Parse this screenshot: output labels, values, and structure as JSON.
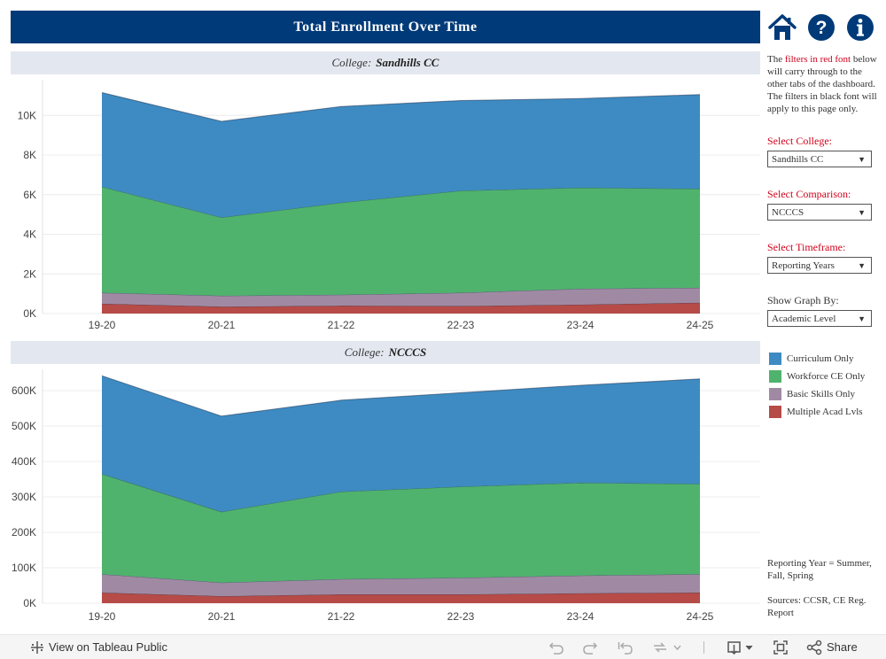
{
  "header": {
    "title": "Total Enrollment Over Time"
  },
  "icons": {
    "home": "home-icon",
    "help": "help-icon",
    "info": "info-icon"
  },
  "colors": {
    "title_bg": "#003a78",
    "curriculum": "#3d8bc2",
    "workforce": "#4fb36d",
    "basic": "#a08aa3",
    "multiple": "#b64b47",
    "filter_red": "#d0021b"
  },
  "sidebar": {
    "note_1": "The",
    "note_red": "filters in red font",
    "note_2": "below will carry through to the other tabs of the dashboard. The filters in black font will apply to this page only.",
    "filters": [
      {
        "label": "Select College:",
        "value": "Sandhills CC"
      },
      {
        "label": "Select Comparison:",
        "value": "NCCCS"
      },
      {
        "label": "Select Timeframe:",
        "value": "Reporting Years"
      },
      {
        "label": "Show Graph By:",
        "value": "Academic Level"
      }
    ],
    "legend": [
      {
        "label": "Curriculum Only"
      },
      {
        "label": "Workforce CE Only"
      },
      {
        "label": "Basic Skills Only"
      },
      {
        "label": "Multiple Acad Lvls"
      }
    ],
    "footnote_1": "Reporting Year = Summer, Fall, Spring",
    "footnote_2": "Sources: CCSR, CE Reg. Report"
  },
  "chart_data": [
    {
      "type": "area",
      "stacked": true,
      "header_prefix": "College:",
      "title": "Sandhills CC",
      "categories": [
        "19-20",
        "20-21",
        "21-22",
        "22-23",
        "23-24",
        "24-25"
      ],
      "series": [
        {
          "name": "Multiple Acad Lvls",
          "values": [
            500,
            350,
            400,
            380,
            450,
            550
          ]
        },
        {
          "name": "Basic Skills Only",
          "values": [
            550,
            550,
            550,
            670,
            800,
            750
          ]
        },
        {
          "name": "Workforce CE Only",
          "values": [
            5350,
            3950,
            4650,
            5150,
            5100,
            5000
          ]
        },
        {
          "name": "Curriculum Only",
          "values": [
            4750,
            4850,
            4850,
            4550,
            4500,
            4750
          ]
        }
      ],
      "ylim": [
        0,
        11800
      ],
      "yticks": [
        0,
        2000,
        4000,
        6000,
        8000,
        10000
      ],
      "ytick_labels": [
        "0K",
        "2K",
        "4K",
        "6K",
        "8K",
        "10K"
      ],
      "grid": true
    },
    {
      "type": "area",
      "stacked": true,
      "header_prefix": "College:",
      "title": "NCCCS",
      "categories": [
        "19-20",
        "20-21",
        "21-22",
        "22-23",
        "23-24",
        "24-25"
      ],
      "series": [
        {
          "name": "Multiple Acad Lvls",
          "values": [
            30000,
            20000,
            25000,
            25000,
            28000,
            30000
          ]
        },
        {
          "name": "Basic Skills Only",
          "values": [
            52000,
            38000,
            43000,
            47000,
            50000,
            52000
          ]
        },
        {
          "name": "Workforce CE Only",
          "values": [
            283000,
            200000,
            247000,
            257000,
            262000,
            255000
          ]
        },
        {
          "name": "Curriculum Only",
          "values": [
            277000,
            270000,
            258000,
            265000,
            275000,
            296000
          ]
        }
      ],
      "ylim": [
        0,
        660000
      ],
      "yticks": [
        0,
        100000,
        200000,
        300000,
        400000,
        500000,
        600000
      ],
      "ytick_labels": [
        "0K",
        "100K",
        "200K",
        "300K",
        "400K",
        "500K",
        "600K"
      ],
      "grid": true
    }
  ],
  "toolbar": {
    "view_label": "View on Tableau Public",
    "share_label": "Share"
  }
}
